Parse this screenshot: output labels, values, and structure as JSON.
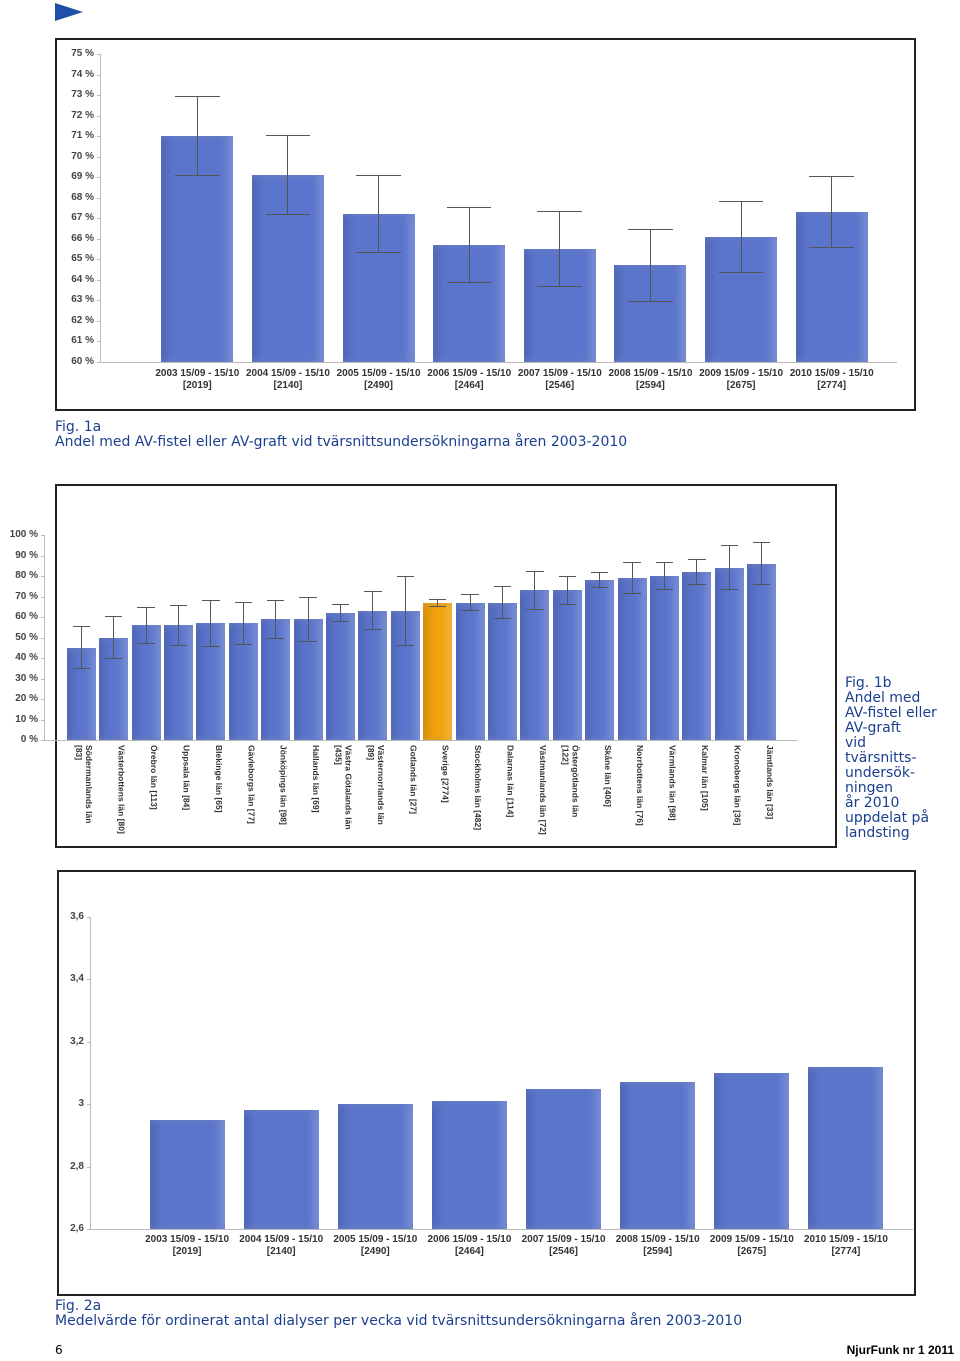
{
  "chart_data": [
    {
      "type": "bar",
      "categories": [
        "2003 15/09 - 15/10 [2019]",
        "2004 15/09 - 15/10 [2140]",
        "2005 15/09 - 15/10 [2490]",
        "2006 15/09 - 15/10 [2464]",
        "2007 15/09 - 15/10 [2546]",
        "2008 15/09 - 15/10 [2594]",
        "2009 15/09 - 15/10 [2675]",
        "2010 15/09 - 15/10 [2774]"
      ],
      "values": [
        71.0,
        69.1,
        67.2,
        65.7,
        65.5,
        64.7,
        66.1,
        67.3
      ],
      "errors": [
        1.95,
        1.95,
        1.9,
        1.85,
        1.85,
        1.8,
        1.75,
        1.75
      ],
      "color": "#5b75cc",
      "ylim": [
        60,
        75
      ],
      "yticks": [
        {
          "value": 60,
          "label": "60 %"
        },
        {
          "value": 61,
          "label": "61 %"
        },
        {
          "value": 62,
          "label": "62 %"
        },
        {
          "value": 63,
          "label": "63 %"
        },
        {
          "value": 64,
          "label": "64 %"
        },
        {
          "value": 65,
          "label": "65 %"
        },
        {
          "value": 66,
          "label": "66 %"
        },
        {
          "value": 67,
          "label": "67 %"
        },
        {
          "value": 68,
          "label": "68 %"
        },
        {
          "value": 69,
          "label": "69 %"
        },
        {
          "value": 70,
          "label": "70 %"
        },
        {
          "value": 71,
          "label": "71 %"
        },
        {
          "value": 72,
          "label": "72 %"
        },
        {
          "value": 73,
          "label": "73 %"
        },
        {
          "value": 74,
          "label": "74 %"
        },
        {
          "value": 75,
          "label": "75 %"
        }
      ]
    },
    {
      "type": "bar",
      "categories": [
        "Södermanlands län [83]",
        "Västerbottens län [80]",
        "Örebro län [113]",
        "Uppsala län [84]",
        "Blekinge län [65]",
        "Gävleborgs län [77]",
        "Jönköpings län [98]",
        "Hallands län [69]",
        "Västra Götalands län [435]",
        "Västernorrlands län [89]",
        "Gotlands län [27]",
        "Sverige [2774]",
        "Stockholms län [482]",
        "Dalarnas län [114]",
        "Västmanlands län [72]",
        "Östergötlands län [122]",
        "Skåne län [406]",
        "Norrbottens län [76]",
        "Värmlands län [98]",
        "Kalmar län [105]",
        "Kronobergs län [36]",
        "Jämtlands län [33]"
      ],
      "values": [
        45,
        50,
        56,
        56,
        57,
        57,
        59,
        59,
        62,
        63,
        63,
        67,
        67,
        67,
        73,
        73,
        78,
        79,
        80,
        82,
        84,
        86
      ],
      "errors": [
        10.5,
        10.5,
        9,
        10,
        11.5,
        10.5,
        9.5,
        11,
        4.5,
        9.5,
        17,
        2,
        4,
        8,
        9.5,
        7,
        4,
        8,
        7,
        6.5,
        11,
        10.5
      ],
      "colors": [
        "#5b75cc",
        "#5b75cc",
        "#5b75cc",
        "#5b75cc",
        "#5b75cc",
        "#5b75cc",
        "#5b75cc",
        "#5b75cc",
        "#5b75cc",
        "#5b75cc",
        "#5b75cc",
        "#f2a20c",
        "#5b75cc",
        "#5b75cc",
        "#5b75cc",
        "#5b75cc",
        "#5b75cc",
        "#5b75cc",
        "#5b75cc",
        "#5b75cc",
        "#5b75cc",
        "#5b75cc"
      ],
      "ylim": [
        0,
        100
      ],
      "yticks": [
        {
          "value": 0,
          "label": "0 %"
        },
        {
          "value": 10,
          "label": "10 %"
        },
        {
          "value": 20,
          "label": "20 %"
        },
        {
          "value": 30,
          "label": "30 %"
        },
        {
          "value": 40,
          "label": "40 %"
        },
        {
          "value": 50,
          "label": "50 %"
        },
        {
          "value": 60,
          "label": "60 %"
        },
        {
          "value": 70,
          "label": "70 %"
        },
        {
          "value": 80,
          "label": "80 %"
        },
        {
          "value": 90,
          "label": "90 %"
        },
        {
          "value": 100,
          "label": "100 %"
        }
      ]
    },
    {
      "type": "bar",
      "categories": [
        "2003 15/09 - 15/10 [2019]",
        "2004 15/09 - 15/10 [2140]",
        "2005 15/09 - 15/10 [2490]",
        "2006 15/09 - 15/10 [2464]",
        "2007 15/09 - 15/10 [2546]",
        "2008 15/09 - 15/10 [2594]",
        "2009 15/09 - 15/10 [2675]",
        "2010 15/09 - 15/10 [2774]"
      ],
      "values": [
        2.95,
        2.98,
        3.0,
        3.01,
        3.05,
        3.07,
        3.1,
        3.12
      ],
      "color": "#5b75cc",
      "ylim": [
        2.6,
        3.6
      ],
      "yticks": [
        {
          "value": 2.6,
          "label": "2,6"
        },
        {
          "value": 2.8,
          "label": "2,8"
        },
        3,
        {
          "value": 3.2,
          "label": "3,2"
        },
        {
          "value": 3.4,
          "label": "3,4"
        },
        {
          "value": 3.6,
          "label": "3,6"
        }
      ]
    }
  ],
  "captions": [
    {
      "label": "Fig. 1a",
      "lines": [
        "Andel med AV-fistel eller AV-graft vid tvärsnittsundersökningarna åren 2003-2010"
      ]
    },
    {
      "label": "Fig. 1b",
      "lines": [
        "Andel med",
        "AV-fistel eller",
        "AV-graft",
        "vid",
        "tvärsnitts-",
        "undersök-",
        "ningen",
        "år 2010",
        "uppdelat på",
        "landsting"
      ]
    },
    {
      "label": "Fig. 2a",
      "lines": [
        "Medelvärde för ordinerat antal dialyser per vecka vid tvärsnittsundersökningarna åren 2003-2010"
      ]
    }
  ],
  "footer": {
    "page_number": "6",
    "publication": "NjurFunk nr 1 2011"
  }
}
